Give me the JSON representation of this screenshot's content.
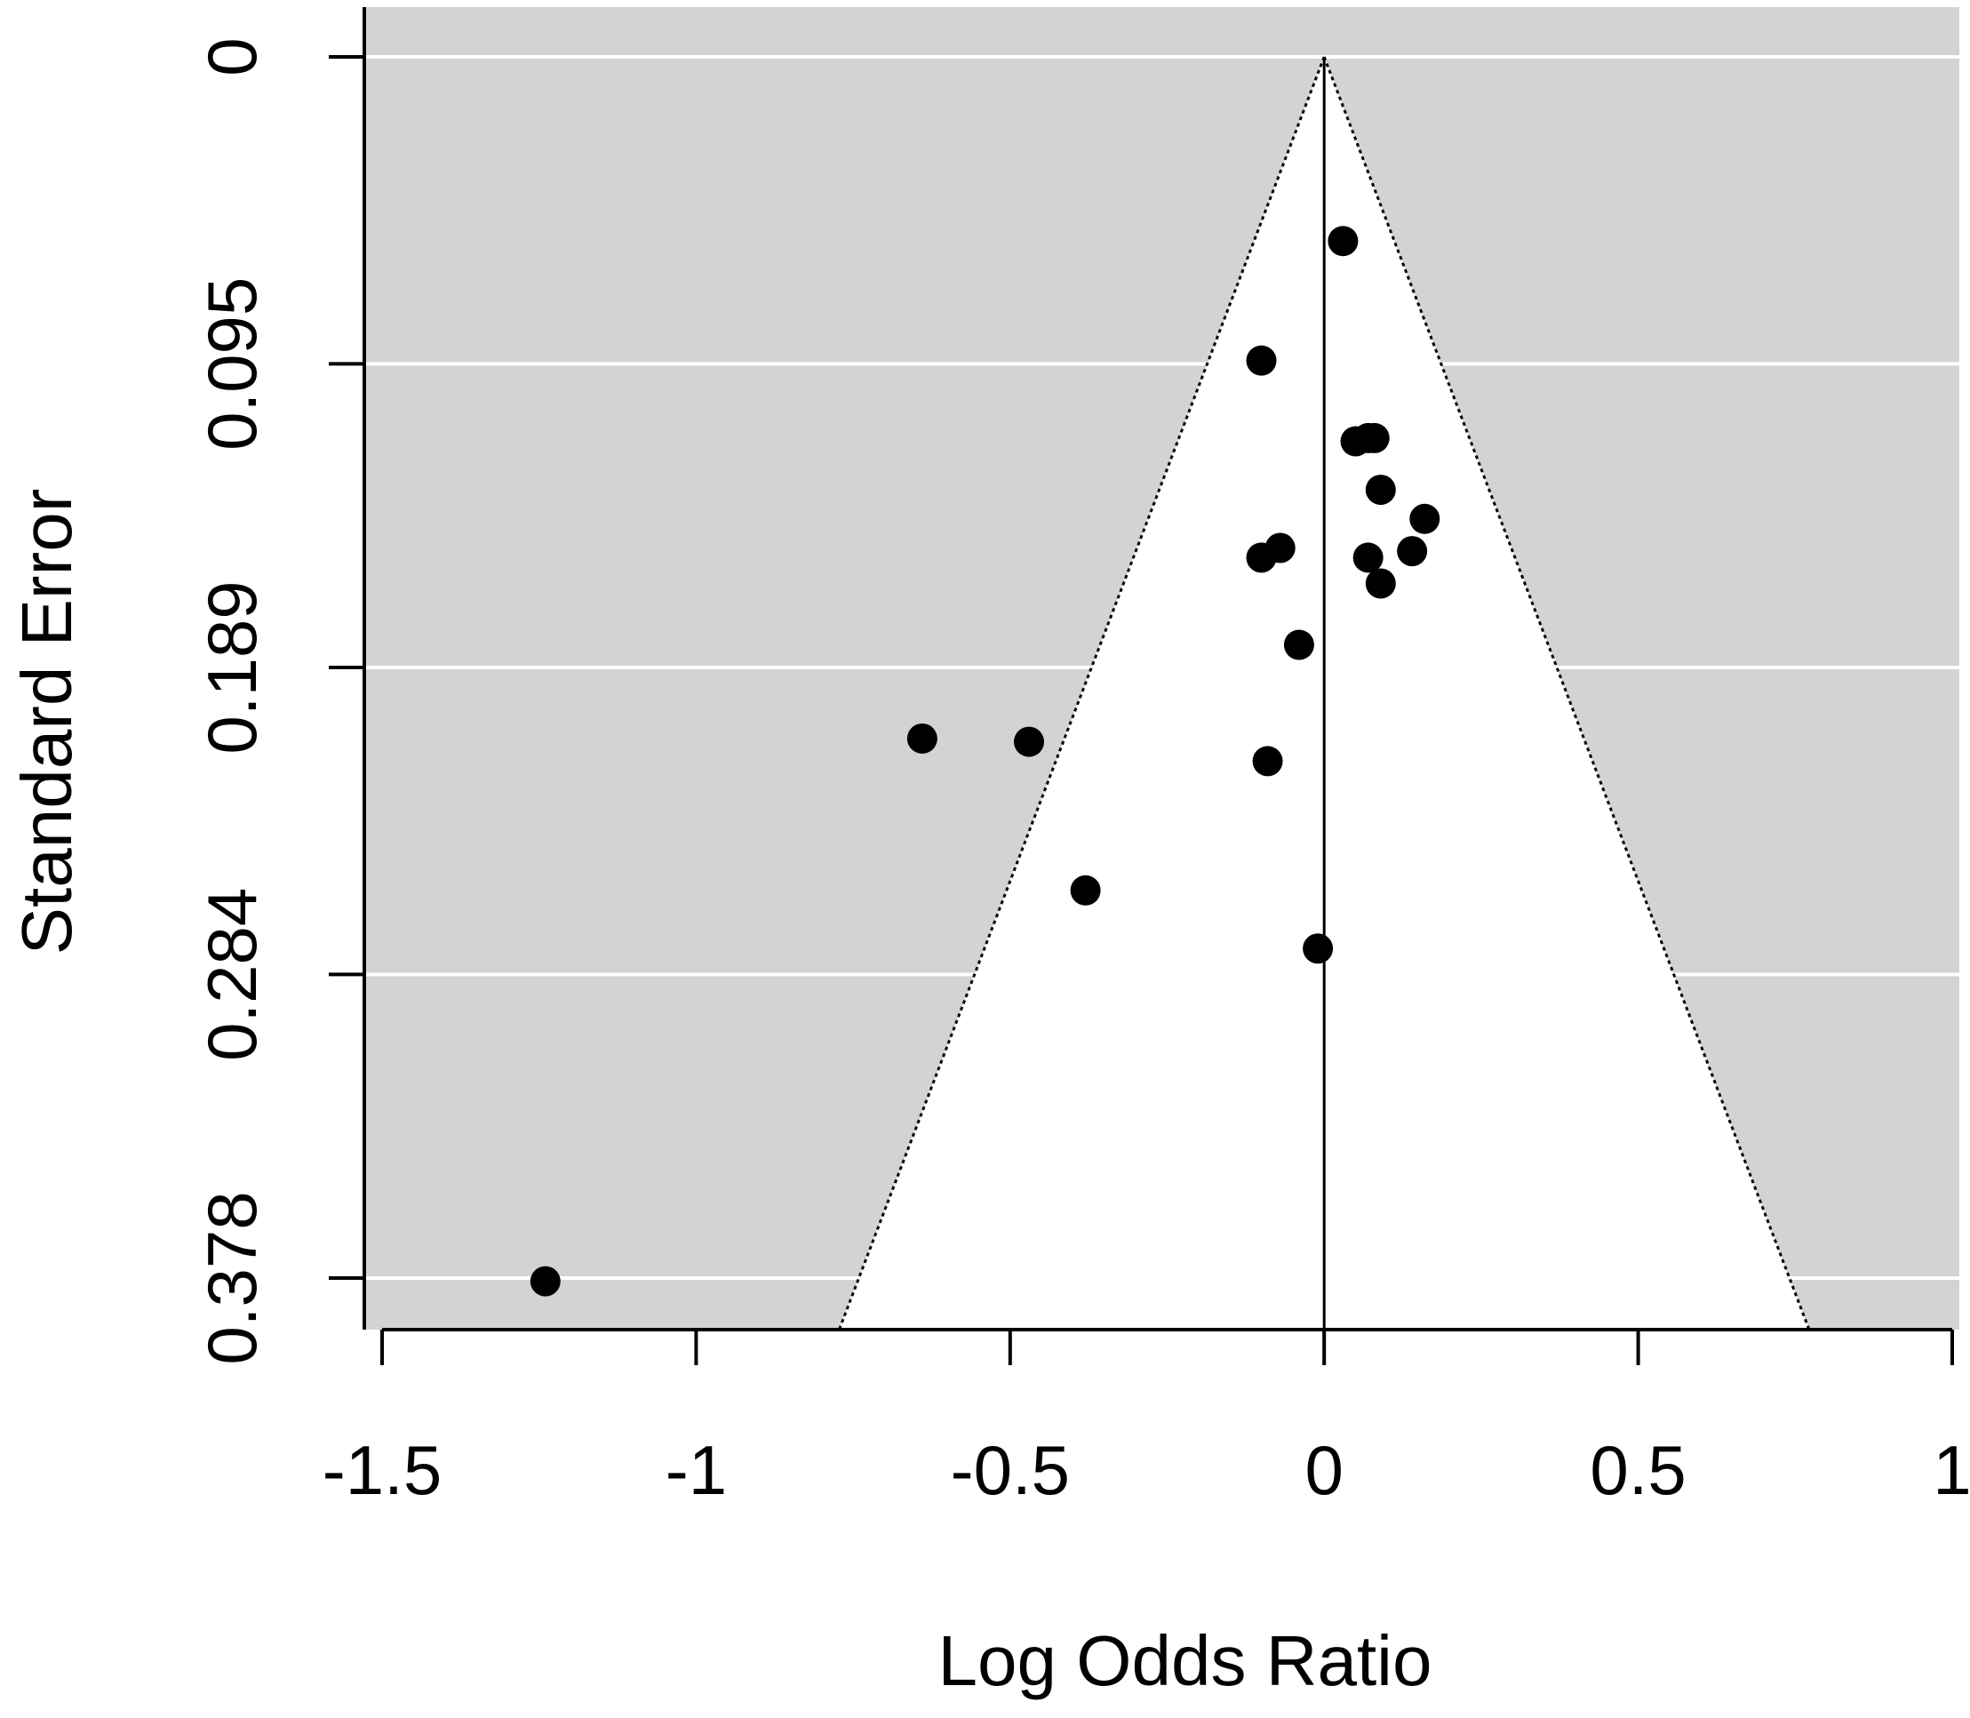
{
  "chart_data": {
    "type": "scatter",
    "subtype": "funnel-plot",
    "xlabel": "Log Odds Ratio",
    "ylabel": "Standard Error",
    "xlim": [
      -1.53,
      1.0
    ],
    "ylim": [
      0,
      0.395
    ],
    "y_reversed": true,
    "x_ticks": [
      -1.5,
      -1,
      -0.5,
      0,
      0.5,
      1
    ],
    "x_tick_labels": [
      "-1.5",
      "-1",
      "-0.5",
      "0",
      "0.5",
      "1"
    ],
    "y_ticks": [
      0,
      0.095,
      0.189,
      0.284,
      0.378
    ],
    "y_tick_labels": [
      "0",
      "0.095",
      "0.189",
      "0.284",
      "0.378"
    ],
    "grid": true,
    "reference_line_x": 0,
    "funnel_z": 1.96,
    "colors": {
      "panel_background": "#d3d3d3",
      "funnel_region": "#ffffff",
      "gridline": "#ffffff",
      "point": "#000000",
      "axis": "#000000"
    },
    "points": [
      {
        "x": 0.03,
        "y": 0.057
      },
      {
        "x": -0.1,
        "y": 0.094
      },
      {
        "x": 0.05,
        "y": 0.119
      },
      {
        "x": 0.07,
        "y": 0.118
      },
      {
        "x": 0.08,
        "y": 0.118
      },
      {
        "x": 0.09,
        "y": 0.134
      },
      {
        "x": 0.16,
        "y": 0.143
      },
      {
        "x": 0.14,
        "y": 0.153
      },
      {
        "x": -0.07,
        "y": 0.152
      },
      {
        "x": -0.1,
        "y": 0.155
      },
      {
        "x": 0.07,
        "y": 0.155
      },
      {
        "x": 0.09,
        "y": 0.163
      },
      {
        "x": -0.04,
        "y": 0.182
      },
      {
        "x": -0.64,
        "y": 0.211
      },
      {
        "x": -0.47,
        "y": 0.212
      },
      {
        "x": -0.09,
        "y": 0.218
      },
      {
        "x": -0.38,
        "y": 0.258
      },
      {
        "x": -0.01,
        "y": 0.276
      },
      {
        "x": -1.24,
        "y": 0.379
      }
    ]
  }
}
